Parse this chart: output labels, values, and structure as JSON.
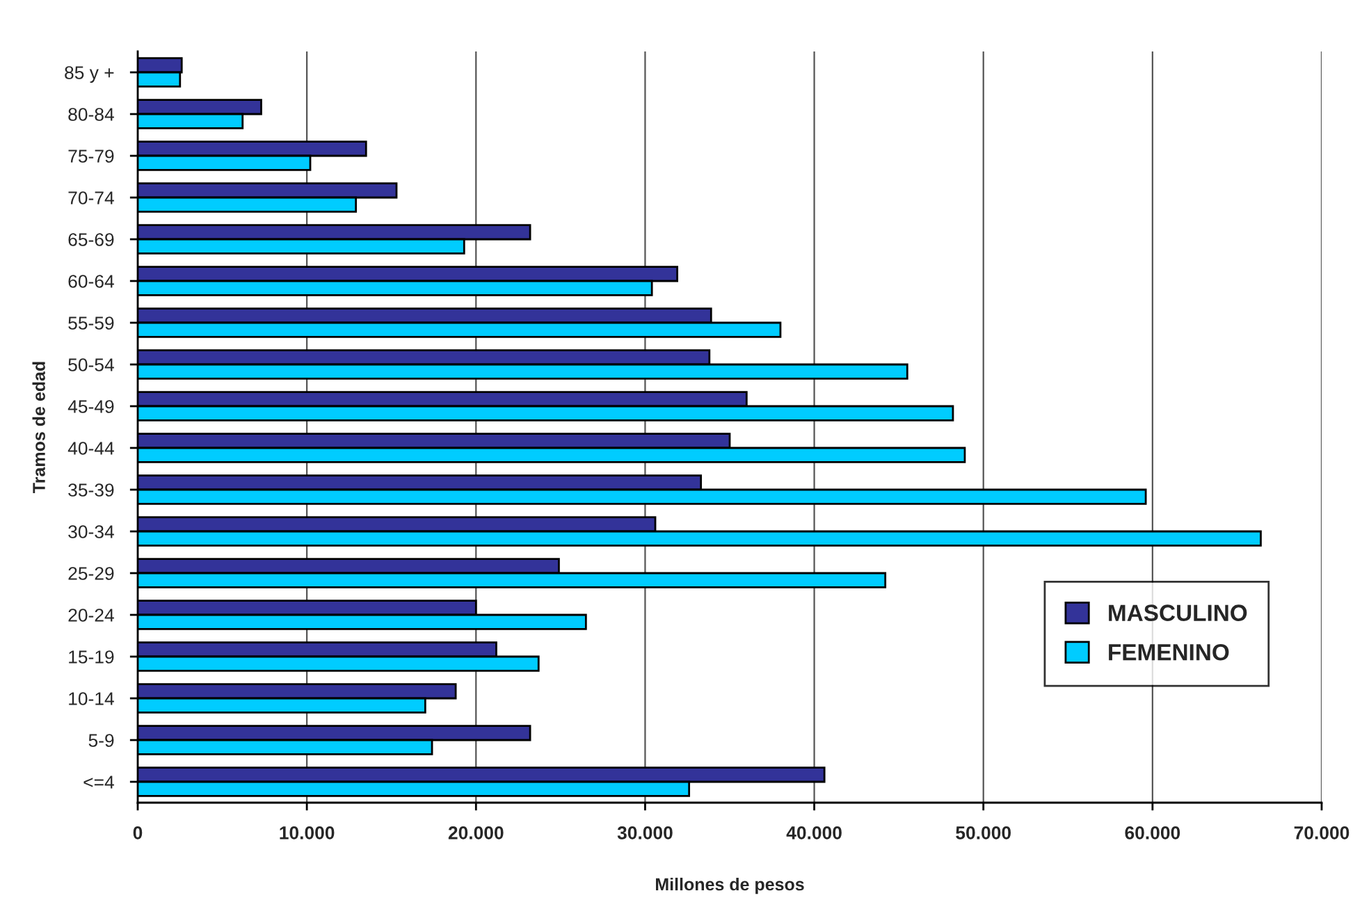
{
  "chart_data": {
    "type": "bar",
    "orientation": "horizontal",
    "xlabel": "Millones de pesos",
    "ylabel": "Tramos de edad",
    "categories": [
      "85 y +",
      "80-84",
      "75-79",
      "70-74",
      "65-69",
      "60-64",
      "55-59",
      "50-54",
      "45-49",
      "40-44",
      "35-39",
      "30-34",
      "25-29",
      "20-24",
      "15-19",
      "10-14",
      "5-9",
      "<=4"
    ],
    "series": [
      {
        "name": "MASCULINO",
        "color": "#333399",
        "values": [
          2600,
          7300,
          13500,
          15300,
          23200,
          31900,
          33900,
          33800,
          36000,
          35000,
          33300,
          30600,
          24900,
          20000,
          21200,
          18800,
          23200,
          40600
        ]
      },
      {
        "name": "FEMENINO",
        "color": "#00ccff",
        "values": [
          2500,
          6200,
          10200,
          12900,
          19300,
          30400,
          38000,
          45500,
          48200,
          48900,
          59600,
          66400,
          44200,
          26500,
          23700,
          17000,
          17400,
          32600
        ]
      }
    ],
    "xlim": [
      0,
      70000
    ],
    "xticks": [
      {
        "value": 0,
        "label": "0"
      },
      {
        "value": 10000,
        "label": "10.000"
      },
      {
        "value": 20000,
        "label": "20.000"
      },
      {
        "value": 30000,
        "label": "30.000"
      },
      {
        "value": 40000,
        "label": "40.000"
      },
      {
        "value": 50000,
        "label": "50.000"
      },
      {
        "value": 60000,
        "label": "60.000"
      },
      {
        "value": 70000,
        "label": "70.000"
      }
    ],
    "grid": "x",
    "legend": "bottom right"
  }
}
